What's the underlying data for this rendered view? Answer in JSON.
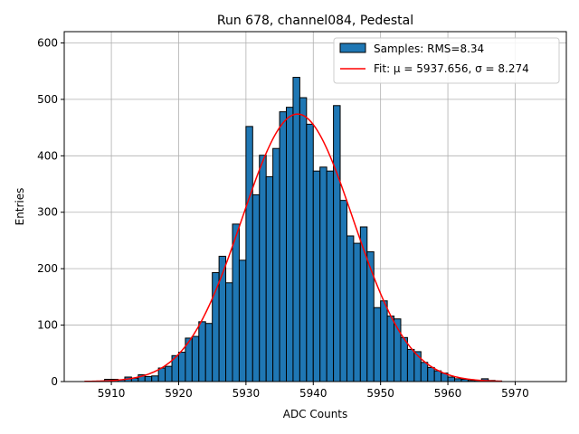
{
  "chart_data": {
    "type": "bar",
    "title": "Run 678, channel084, Pedestal",
    "xlabel": "ADC Counts",
    "ylabel": "Entries",
    "xlim": [
      5903.0,
      5977.6
    ],
    "ylim": [
      0,
      620
    ],
    "xticks": [
      5910,
      5920,
      5930,
      5940,
      5950,
      5960,
      5970
    ],
    "yticks": [
      0,
      100,
      200,
      300,
      400,
      500,
      600
    ],
    "grid": true,
    "legend_position": "top-right",
    "bin_start": 5906,
    "bin_width": 1,
    "histogram": {
      "name": "Samples: RMS=8.34",
      "color": "#1f77b4",
      "edgecolor": "#000000",
      "counts": [
        0,
        0,
        0,
        4,
        4,
        3,
        8,
        6,
        12,
        9,
        10,
        24,
        27,
        46,
        52,
        77,
        80,
        106,
        103,
        193,
        222,
        175,
        279,
        215,
        452,
        331,
        401,
        363,
        413,
        478,
        486,
        539,
        503,
        456,
        373,
        380,
        373,
        489,
        321,
        258,
        245,
        274,
        230,
        131,
        143,
        116,
        111,
        78,
        57,
        53,
        34,
        25,
        19,
        15,
        8,
        5,
        4,
        2,
        2,
        5,
        2,
        1
      ]
    },
    "fit": {
      "name": "Fit: μ = 5937.656, σ = 8.274",
      "color": "#ff0000",
      "mu": 5937.656,
      "sigma": 8.274,
      "amplitude": 474,
      "x_range": [
        5906,
        5968
      ]
    }
  }
}
